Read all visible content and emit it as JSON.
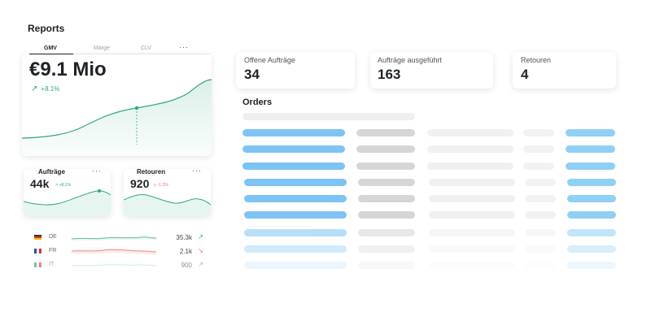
{
  "header": {
    "title": "Reports"
  },
  "gmv_card": {
    "tabs": [
      {
        "label": "GMV",
        "active": true
      },
      {
        "label": "Marge",
        "active": false
      },
      {
        "label": "CLV",
        "active": false
      }
    ],
    "menu_label": "···",
    "value": "€9.1 Mio",
    "trend": "+8.1%",
    "trend_icon": "arrow-up-right-icon"
  },
  "small_cards": [
    {
      "title": "Aufträge",
      "value": "44k",
      "trend": "↗ +8.1%",
      "trend_color": "#2fa97a",
      "menu_label": "···"
    },
    {
      "title": "Retouren",
      "value": "920",
      "trend": "↘ -1.3%",
      "trend_color": "#e0736b",
      "menu_label": "···"
    }
  ],
  "countries": [
    {
      "code": "DE",
      "value": "35.3k",
      "arrow": "↗",
      "color": "#2fa97a"
    },
    {
      "code": "FR",
      "value": "2.1k",
      "arrow": "↘",
      "color": "#e0736b"
    },
    {
      "code": "IT",
      "value": "900",
      "arrow": "↗",
      "color": "#2fa97a"
    }
  ],
  "kpis": [
    {
      "label": "Offene Aufträge",
      "value": "34"
    },
    {
      "label": "Aufträge ausgeführt",
      "value": "163"
    },
    {
      "label": "Retouren",
      "value": "4"
    }
  ],
  "orders": {
    "title": "Orders"
  },
  "colors": {
    "accent_green": "#2fa97a",
    "accent_red": "#e0736b",
    "order_blue": "#7cc4f4",
    "order_grey": "#d6d6d6",
    "placeholder": "#efefef"
  }
}
